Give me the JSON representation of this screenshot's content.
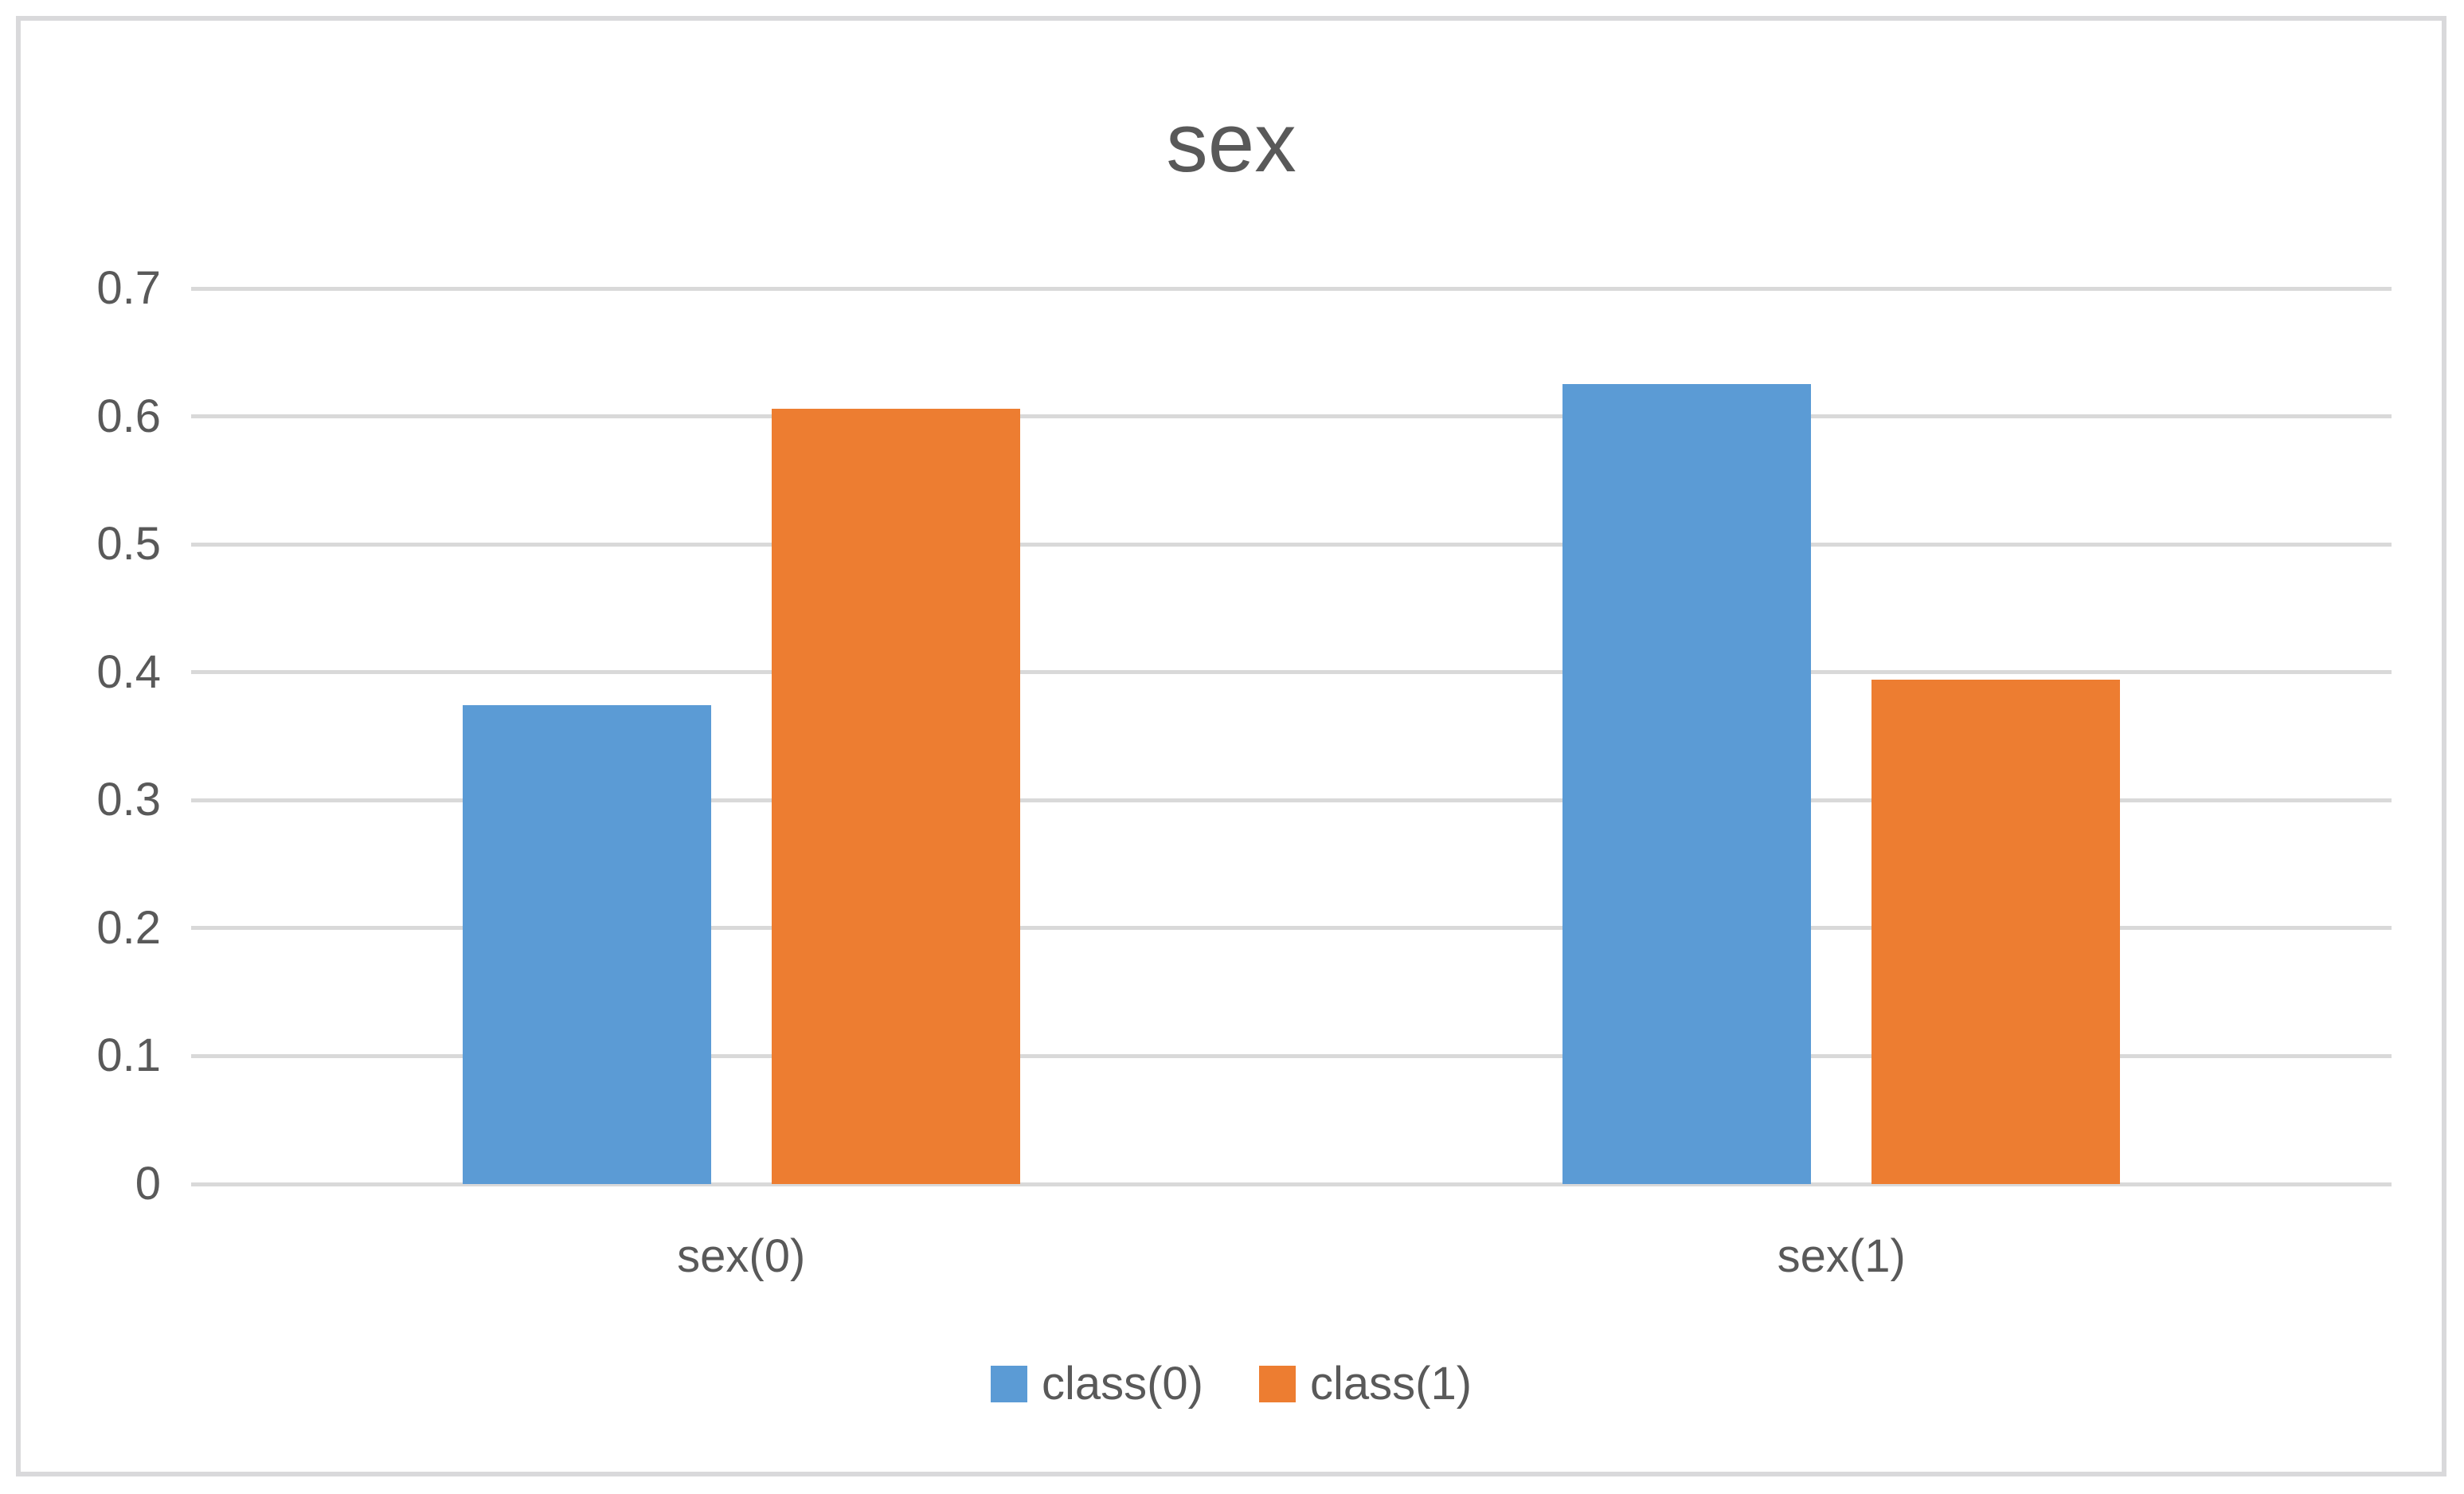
{
  "chart_data": {
    "type": "bar",
    "title": "sex",
    "categories": [
      "sex(0)",
      "sex(1)"
    ],
    "series": [
      {
        "name": "class(0)",
        "color": "#5B9BD5",
        "values": [
          0.374,
          0.625
        ]
      },
      {
        "name": "class(1)",
        "color": "#ED7D31",
        "values": [
          0.606,
          0.394
        ]
      }
    ],
    "ylim": [
      0,
      0.7
    ],
    "ytick_step": 0.1,
    "ytick_labels": [
      "0",
      "0.1",
      "0.2",
      "0.3",
      "0.4",
      "0.5",
      "0.6",
      "0.7"
    ],
    "grid": true,
    "legend_position": "bottom",
    "colors": {
      "text": "#595959",
      "gridline": "#D9D9D9",
      "frame_border": "#D9D9DB",
      "background": "#FFFFFF"
    }
  }
}
